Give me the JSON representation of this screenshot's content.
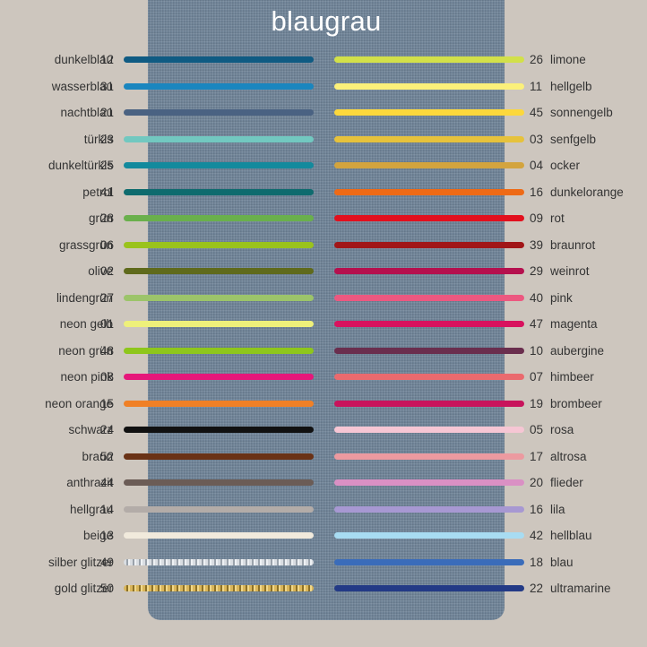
{
  "title": "blaugrau",
  "panel_color": "#6f8397",
  "left_colors": [
    {
      "name": "dunkelblau",
      "code": "12",
      "color": "#0f5b83"
    },
    {
      "name": "wasserblau",
      "code": "31",
      "color": "#1a86bf"
    },
    {
      "name": "nachtblau",
      "code": "21",
      "color": "#4a6282"
    },
    {
      "name": "türkis",
      "code": "23",
      "color": "#72c8c0"
    },
    {
      "name": "dunkeltürkis",
      "code": "25",
      "color": "#138a9d"
    },
    {
      "name": "petrol",
      "code": "41",
      "color": "#0e6b6e"
    },
    {
      "name": "grün",
      "code": "28",
      "color": "#6ab04c"
    },
    {
      "name": "grassgrün",
      "code": "06",
      "color": "#9ac31c"
    },
    {
      "name": "olive",
      "code": "02",
      "color": "#5f6a1c"
    },
    {
      "name": "lindengrün",
      "code": "27",
      "color": "#9cc46a"
    },
    {
      "name": "neon gelb",
      "code": "01",
      "color": "#eef07a"
    },
    {
      "name": "neon grün",
      "code": "48",
      "color": "#8ec61c"
    },
    {
      "name": "neon pink",
      "code": "08",
      "color": "#e6177a"
    },
    {
      "name": "neon orange",
      "code": "15",
      "color": "#f08026"
    },
    {
      "name": "schwarz",
      "code": "24",
      "color": "#111111"
    },
    {
      "name": "braun",
      "code": "52",
      "color": "#6a3216"
    },
    {
      "name": "anthrazit",
      "code": "44",
      "color": "#6b5c56"
    },
    {
      "name": "hellgrau",
      "code": "14",
      "color": "#b3aca8"
    },
    {
      "name": "beige",
      "code": "13",
      "color": "#f1eadc"
    },
    {
      "name": "silber glitzer",
      "code": "49",
      "color": "#c9ced4"
    },
    {
      "name": "gold glitzer",
      "code": "50",
      "color": "#c9a544"
    }
  ],
  "right_colors": [
    {
      "name": "limone",
      "code": "26",
      "color": "#d2e04a"
    },
    {
      "name": "hellgelb",
      "code": "11",
      "color": "#fbf07a"
    },
    {
      "name": "sonnengelb",
      "code": "45",
      "color": "#fcd83c"
    },
    {
      "name": "senfgelb",
      "code": "03",
      "color": "#e6c23c"
    },
    {
      "name": "ocker",
      "code": "04",
      "color": "#d3a43e"
    },
    {
      "name": "dunkelorange",
      "code": "16",
      "color": "#ee6a16"
    },
    {
      "name": "rot",
      "code": "09",
      "color": "#e2101e"
    },
    {
      "name": "braunrot",
      "code": "39",
      "color": "#a11618"
    },
    {
      "name": "weinrot",
      "code": "29",
      "color": "#b5104e"
    },
    {
      "name": "pink",
      "code": "40",
      "color": "#ec5880"
    },
    {
      "name": "magenta",
      "code": "47",
      "color": "#d8125e"
    },
    {
      "name": "aubergine",
      "code": "10",
      "color": "#6a2e4e"
    },
    {
      "name": "himbeer",
      "code": "07",
      "color": "#ea6a6e"
    },
    {
      "name": "brombeer",
      "code": "19",
      "color": "#c8145c"
    },
    {
      "name": "rosa",
      "code": "05",
      "color": "#f6c6d4"
    },
    {
      "name": "altrosa",
      "code": "17",
      "color": "#ec9aa0"
    },
    {
      "name": "flieder",
      "code": "20",
      "color": "#da90c4"
    },
    {
      "name": "lila",
      "code": "16",
      "color": "#a798d2"
    },
    {
      "name": "hellblau",
      "code": "42",
      "color": "#a8dcf2"
    },
    {
      "name": "blau",
      "code": "18",
      "color": "#3a6cba"
    },
    {
      "name": "ultramarine",
      "code": "22",
      "color": "#233a86"
    }
  ]
}
